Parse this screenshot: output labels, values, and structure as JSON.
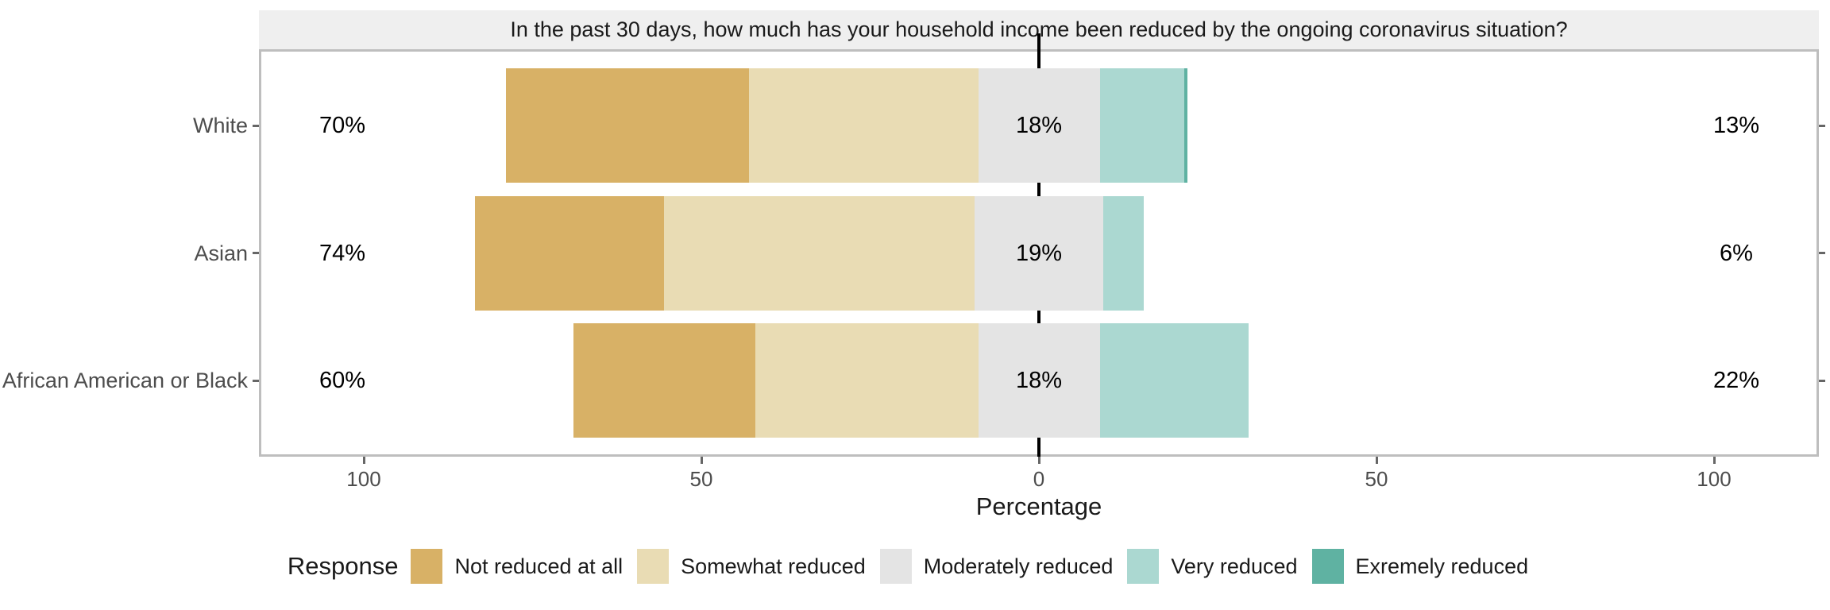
{
  "chart": {
    "title": "In the past 30 days, how much has your household income been reduced by the ongoing coronavirus situation?",
    "x_axis": {
      "label": "Percentage"
    },
    "legend": {
      "title": "Response"
    }
  },
  "chart_data": {
    "type": "bar",
    "subtype": "diverging-stacked-likert",
    "orientation": "horizontal",
    "title": "In the past 30 days, how much has your household income been reduced by the ongoing coronavirus situation?",
    "categories": [
      "White",
      "Asian",
      "African American or Black"
    ],
    "series": [
      {
        "name": "Not reduced at all",
        "color": "#D8B166",
        "values": [
          36,
          28,
          27
        ]
      },
      {
        "name": "Somewhat reduced",
        "color": "#E9DCB4",
        "values": [
          34,
          46,
          33
        ]
      },
      {
        "name": "Moderately reduced",
        "color": "#E4E4E4",
        "values": [
          18,
          19,
          18
        ]
      },
      {
        "name": "Very reduced",
        "color": "#ABD8D1",
        "values": [
          12.5,
          6,
          22
        ]
      },
      {
        "name": "Exremely reduced",
        "color": "#5FB2A2",
        "values": [
          0.5,
          0,
          0
        ]
      }
    ],
    "annotations": {
      "left": [
        "70%",
        "74%",
        "60%"
      ],
      "center": [
        "18%",
        "19%",
        "18%"
      ],
      "right": [
        "13%",
        "6%",
        "22%"
      ]
    },
    "xlabel": "Percentage",
    "x_ticks_labels": [
      "100",
      "50",
      "0",
      "50",
      "100"
    ],
    "x_tick_values": [
      -100,
      -50,
      0,
      50,
      100
    ],
    "xlim": [
      -115,
      117
    ],
    "zero_centered_on": "Moderately reduced",
    "legend_position": "bottom",
    "legend_title": "Response",
    "grid": false
  },
  "colors": {
    "strip_bg": "#EFEFEF",
    "panel_border": "#BEBEBE",
    "zero_line": "#000000",
    "axis_text": "#4D4D4D",
    "title_text": "#1A1A1A",
    "tick": "#666666"
  }
}
